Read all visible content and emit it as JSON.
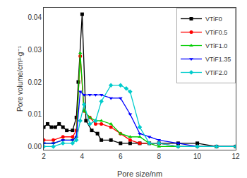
{
  "chart_data": {
    "type": "line",
    "xlabel": "Pore size/nm",
    "ylabel": "Pore volume/cm³·g⁻¹",
    "xlim": [
      2,
      12
    ],
    "ylim": [
      -0.001,
      0.043
    ],
    "xticks": [
      2,
      4,
      6,
      8,
      10,
      12
    ],
    "yticks": [
      {
        "value": 0,
        "label": "0.00"
      },
      0.01,
      0.02,
      0.03,
      0.04
    ],
    "grid": false,
    "legend": "upper right",
    "series": [
      {
        "name": "VTiF0",
        "color": "#000000",
        "marker": "square",
        "x": [
          2.0,
          2.2,
          2.4,
          2.6,
          2.8,
          3.0,
          3.2,
          3.5,
          3.7,
          3.8,
          4.0,
          4.2,
          4.5,
          4.8,
          5.0,
          5.5,
          6.0,
          6.5,
          7.0,
          7.5,
          8.0,
          9.0,
          10.0,
          11.0,
          12.0
        ],
        "values": [
          0.006,
          0.007,
          0.006,
          0.006,
          0.007,
          0.006,
          0.005,
          0.005,
          0.009,
          0.02,
          0.041,
          0.008,
          0.005,
          0.004,
          0.002,
          0.002,
          0.001,
          0.001,
          0.001,
          0.001,
          0.001,
          0.001,
          0.001,
          0.0,
          0.0
        ]
      },
      {
        "name": "VTiF0.5",
        "color": "#ff0000",
        "marker": "circle",
        "x": [
          2.0,
          2.5,
          3.0,
          3.5,
          3.7,
          3.9,
          4.1,
          4.4,
          4.7,
          5.0,
          5.5,
          6.0,
          6.5,
          7.0,
          7.5,
          8.0,
          9.0,
          10.0,
          11.0,
          12.0
        ],
        "values": [
          0.002,
          0.002,
          0.003,
          0.003,
          0.005,
          0.028,
          0.011,
          0.009,
          0.007,
          0.007,
          0.006,
          0.004,
          0.002,
          0.001,
          0.001,
          0.001,
          0.0,
          0.0,
          0.0,
          0.0
        ]
      },
      {
        "name": "VTiF1.0",
        "color": "#00cc00",
        "marker": "triangle-up",
        "x": [
          2.0,
          2.5,
          3.0,
          3.5,
          3.7,
          3.9,
          4.1,
          4.4,
          4.7,
          5.0,
          5.5,
          6.0,
          6.5,
          7.0,
          7.5,
          8.0,
          9.0,
          10.0,
          11.0,
          12.0
        ],
        "values": [
          0.001,
          0.001,
          0.002,
          0.002,
          0.003,
          0.029,
          0.011,
          0.009,
          0.008,
          0.008,
          0.007,
          0.004,
          0.003,
          0.003,
          0.001,
          0.0,
          0.0,
          0.0,
          0.0,
          0.0
        ]
      },
      {
        "name": "VTiF1.35",
        "color": "#0000ff",
        "marker": "triangle-down",
        "x": [
          2.0,
          2.5,
          3.0,
          3.5,
          3.7,
          3.9,
          4.1,
          4.4,
          4.7,
          5.0,
          5.5,
          6.0,
          6.5,
          7.0,
          7.5,
          8.0,
          9.0,
          10.0,
          11.0,
          12.0
        ],
        "values": [
          0.001,
          0.001,
          0.002,
          0.002,
          0.003,
          0.017,
          0.016,
          0.016,
          0.016,
          0.016,
          0.015,
          0.015,
          0.01,
          0.004,
          0.003,
          0.002,
          0.001,
          0.0,
          0.0,
          0.0
        ]
      },
      {
        "name": "VTiF2.0",
        "color": "#00cccc",
        "marker": "diamond",
        "x": [
          2.0,
          2.5,
          3.0,
          3.5,
          3.7,
          3.9,
          4.1,
          4.4,
          4.7,
          5.0,
          5.5,
          6.0,
          6.3,
          6.5,
          7.0,
          7.5,
          8.0,
          9.0,
          10.0,
          11.0,
          12.0
        ],
        "values": [
          0.0,
          0.0,
          0.001,
          0.001,
          0.002,
          0.008,
          0.013,
          0.007,
          0.008,
          0.014,
          0.019,
          0.019,
          0.018,
          0.017,
          0.006,
          0.001,
          0.001,
          0.0,
          0.0,
          0.0,
          0.0
        ]
      }
    ]
  }
}
